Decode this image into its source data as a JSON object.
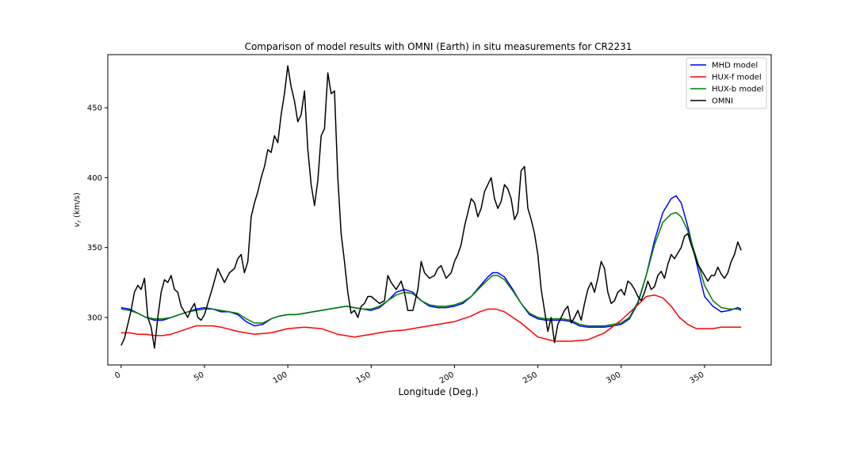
{
  "chart_data": {
    "type": "line",
    "title": "Comparison of model results with OMNI (Earth) in situ measurements for CR2231",
    "xlabel": "Longitude (Deg.)",
    "ylabel": "v_r (km/s)",
    "ylabel_display": "vr (km/s)",
    "xlim": [
      -8,
      390
    ],
    "ylim": [
      266,
      488
    ],
    "xticks": [
      0,
      50,
      100,
      150,
      200,
      250,
      300,
      350
    ],
    "yticks": [
      300,
      350,
      400,
      450
    ],
    "legend_position": "top-right",
    "grid": false,
    "series": [
      {
        "name": "MHD model",
        "color": "#0000ff",
        "x": [
          0,
          5,
          10,
          15,
          20,
          25,
          30,
          35,
          40,
          45,
          50,
          55,
          60,
          65,
          70,
          75,
          80,
          85,
          90,
          95,
          100,
          105,
          110,
          115,
          120,
          125,
          130,
          135,
          140,
          145,
          150,
          155,
          160,
          165,
          170,
          175,
          180,
          185,
          190,
          195,
          200,
          205,
          210,
          215,
          220,
          223,
          226,
          230,
          235,
          240,
          245,
          250,
          255,
          260,
          265,
          270,
          275,
          280,
          285,
          290,
          295,
          300,
          305,
          310,
          315,
          320,
          325,
          330,
          333,
          336,
          340,
          345,
          350,
          355,
          360,
          365,
          370,
          372
        ],
        "y": [
          307,
          306,
          303,
          300,
          298,
          298,
          300,
          302,
          304,
          306,
          307,
          306,
          304,
          304,
          302,
          297,
          294,
          295,
          299,
          301,
          302,
          302,
          303,
          304,
          305,
          306,
          307,
          308,
          307,
          306,
          305,
          307,
          312,
          318,
          320,
          318,
          312,
          308,
          307,
          307,
          308,
          310,
          315,
          322,
          329,
          332,
          332,
          329,
          320,
          310,
          302,
          299,
          298,
          298,
          298,
          297,
          294,
          293,
          293,
          293,
          294,
          295,
          299,
          310,
          330,
          355,
          375,
          385,
          387,
          382,
          365,
          340,
          315,
          308,
          304,
          305,
          307,
          306
        ]
      },
      {
        "name": "HUX-f model",
        "color": "#ff0000",
        "x": [
          0,
          5,
          10,
          15,
          20,
          25,
          30,
          40,
          45,
          50,
          55,
          60,
          70,
          80,
          90,
          100,
          110,
          120,
          130,
          140,
          150,
          160,
          170,
          180,
          190,
          200,
          210,
          215,
          220,
          225,
          230,
          240,
          250,
          260,
          270,
          280,
          290,
          300,
          310,
          315,
          320,
          325,
          330,
          335,
          340,
          345,
          350,
          355,
          360,
          370,
          372
        ],
        "y": [
          289,
          289,
          288,
          288,
          287,
          287,
          288,
          292,
          294,
          294,
          294,
          293,
          290,
          288,
          289,
          292,
          293,
          292,
          288,
          286,
          288,
          290,
          291,
          293,
          295,
          297,
          301,
          304,
          306,
          306,
          304,
          296,
          286,
          283,
          283,
          284,
          289,
          298,
          309,
          315,
          316,
          314,
          308,
          300,
          295,
          292,
          292,
          292,
          293,
          293,
          293
        ]
      },
      {
        "name": "HUX-b model",
        "color": "#008000",
        "x": [
          0,
          5,
          10,
          15,
          20,
          25,
          30,
          35,
          40,
          45,
          50,
          55,
          60,
          65,
          70,
          75,
          80,
          85,
          90,
          95,
          100,
          105,
          110,
          115,
          120,
          125,
          130,
          135,
          140,
          145,
          150,
          155,
          160,
          165,
          170,
          175,
          180,
          185,
          190,
          195,
          200,
          205,
          210,
          215,
          220,
          223,
          226,
          230,
          235,
          240,
          245,
          250,
          255,
          260,
          265,
          270,
          275,
          280,
          285,
          290,
          295,
          300,
          305,
          310,
          315,
          320,
          325,
          330,
          333,
          336,
          340,
          345,
          350,
          355,
          360,
          365,
          370,
          372
        ],
        "y": [
          306,
          305,
          303,
          300,
          299,
          299,
          300,
          302,
          304,
          305,
          306,
          306,
          305,
          304,
          303,
          299,
          296,
          296,
          299,
          301,
          302,
          302,
          303,
          304,
          305,
          306,
          307,
          308,
          307,
          306,
          306,
          308,
          312,
          316,
          318,
          317,
          312,
          309,
          308,
          308,
          309,
          311,
          315,
          321,
          327,
          330,
          330,
          327,
          319,
          310,
          303,
          300,
          299,
          299,
          299,
          298,
          295,
          294,
          294,
          294,
          295,
          296,
          300,
          311,
          330,
          352,
          368,
          374,
          375,
          372,
          362,
          343,
          323,
          312,
          307,
          306,
          306,
          305
        ]
      },
      {
        "name": "OMNI",
        "color": "#000000",
        "x": [
          0,
          2,
          4,
          6,
          8,
          10,
          12,
          14,
          16,
          18,
          20,
          22,
          24,
          26,
          28,
          30,
          32,
          34,
          36,
          38,
          40,
          42,
          44,
          46,
          48,
          50,
          52,
          55,
          58,
          60,
          62,
          65,
          68,
          70,
          72,
          74,
          76,
          78,
          80,
          82,
          84,
          86,
          88,
          90,
          92,
          94,
          96,
          98,
          100,
          102,
          104,
          106,
          108,
          110,
          112,
          114,
          116,
          118,
          120,
          122,
          124,
          126,
          128,
          130,
          132,
          134,
          136,
          138,
          140,
          142,
          144,
          146,
          148,
          150,
          152,
          155,
          158,
          160,
          162,
          165,
          168,
          170,
          172,
          175,
          178,
          180,
          182,
          185,
          188,
          190,
          192,
          195,
          198,
          200,
          202,
          204,
          206,
          208,
          210,
          212,
          214,
          216,
          218,
          220,
          222,
          224,
          226,
          228,
          230,
          232,
          234,
          236,
          238,
          240,
          242,
          244,
          246,
          248,
          250,
          252,
          254,
          256,
          258,
          260,
          262,
          264,
          266,
          268,
          270,
          272,
          274,
          276,
          278,
          280,
          282,
          284,
          286,
          288,
          290,
          292,
          294,
          296,
          298,
          300,
          302,
          304,
          306,
          308,
          310,
          312,
          314,
          316,
          318,
          320,
          322,
          324,
          326,
          328,
          330,
          332,
          334,
          336,
          338,
          340,
          342,
          344,
          346,
          348,
          350,
          352,
          354,
          356,
          358,
          360,
          362,
          364,
          366,
          368,
          370,
          372
        ],
        "y": [
          280,
          285,
          295,
          305,
          318,
          323,
          320,
          328,
          300,
          293,
          278,
          300,
          318,
          327,
          325,
          330,
          320,
          318,
          308,
          304,
          300,
          306,
          310,
          300,
          298,
          302,
          310,
          322,
          335,
          330,
          325,
          332,
          335,
          342,
          345,
          332,
          340,
          372,
          382,
          390,
          400,
          408,
          420,
          418,
          430,
          425,
          445,
          460,
          480,
          465,
          455,
          440,
          445,
          462,
          420,
          395,
          380,
          398,
          430,
          435,
          475,
          460,
          462,
          400,
          360,
          340,
          318,
          303,
          305,
          300,
          308,
          310,
          315,
          315,
          313,
          310,
          312,
          330,
          325,
          320,
          326,
          318,
          305,
          305,
          320,
          340,
          332,
          328,
          330,
          335,
          337,
          328,
          332,
          340,
          345,
          352,
          365,
          375,
          385,
          382,
          372,
          378,
          390,
          395,
          400,
          385,
          378,
          383,
          395,
          392,
          385,
          370,
          375,
          405,
          408,
          378,
          370,
          360,
          345,
          320,
          305,
          290,
          300,
          282,
          295,
          300,
          305,
          308,
          296,
          300,
          305,
          298,
          310,
          320,
          325,
          318,
          328,
          340,
          335,
          318,
          310,
          312,
          318,
          320,
          316,
          326,
          324,
          320,
          315,
          312,
          318,
          326,
          320,
          322,
          330,
          333,
          328,
          338,
          345,
          342,
          346,
          350,
          358,
          360,
          352,
          345,
          338,
          334,
          330,
          326,
          330,
          330,
          336,
          331,
          328,
          332,
          340,
          345,
          354,
          348
        ]
      }
    ]
  }
}
